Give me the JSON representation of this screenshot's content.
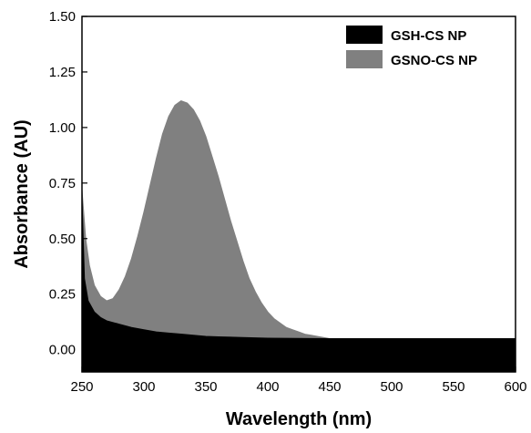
{
  "chart_data": {
    "type": "area",
    "xlabel": "Wavelength (nm)",
    "ylabel": "Absorbance (AU)",
    "xlim": [
      250,
      600
    ],
    "ylim": [
      -0.1,
      1.5
    ],
    "xticks": [
      250,
      300,
      350,
      400,
      450,
      500,
      550,
      600
    ],
    "xtick_labels": [
      "250",
      "300",
      "350",
      "400",
      "450",
      "500",
      "550",
      "600"
    ],
    "yticks": [
      0.0,
      0.25,
      0.5,
      0.75,
      1.0,
      1.25,
      1.5
    ],
    "ytick_labels": [
      "0.00",
      "0.25",
      "0.50",
      "0.75",
      "1.00",
      "1.25",
      "1.50"
    ],
    "legend_position": "top-right",
    "series": [
      {
        "name": "GSNO-CS NP",
        "color": "#808080",
        "x": [
          250,
          253,
          256,
          260,
          265,
          270,
          275,
          280,
          285,
          290,
          295,
          300,
          305,
          310,
          315,
          320,
          325,
          330,
          335,
          340,
          345,
          350,
          355,
          360,
          365,
          370,
          375,
          380,
          385,
          390,
          395,
          400,
          405,
          410,
          415,
          420,
          425,
          430,
          435,
          440,
          445,
          450,
          460,
          470,
          480,
          500,
          550,
          600
        ],
        "y": [
          0.72,
          0.5,
          0.38,
          0.29,
          0.24,
          0.22,
          0.23,
          0.27,
          0.33,
          0.41,
          0.51,
          0.62,
          0.74,
          0.86,
          0.97,
          1.05,
          1.1,
          1.12,
          1.11,
          1.08,
          1.03,
          0.96,
          0.87,
          0.78,
          0.68,
          0.58,
          0.49,
          0.4,
          0.32,
          0.26,
          0.21,
          0.17,
          0.14,
          0.12,
          0.1,
          0.09,
          0.08,
          0.07,
          0.065,
          0.06,
          0.055,
          0.05,
          0.05,
          0.05,
          0.05,
          0.05,
          0.05,
          0.05
        ]
      },
      {
        "name": "GSH-CS NP",
        "color": "#000000",
        "x": [
          250,
          252,
          255,
          260,
          265,
          270,
          280,
          290,
          300,
          310,
          320,
          330,
          340,
          350,
          360,
          380,
          400,
          450,
          500,
          550,
          600
        ],
        "y": [
          0.68,
          0.32,
          0.22,
          0.17,
          0.145,
          0.13,
          0.115,
          0.1,
          0.09,
          0.08,
          0.075,
          0.07,
          0.065,
          0.06,
          0.058,
          0.055,
          0.052,
          0.05,
          0.05,
          0.05,
          0.05
        ]
      }
    ]
  }
}
